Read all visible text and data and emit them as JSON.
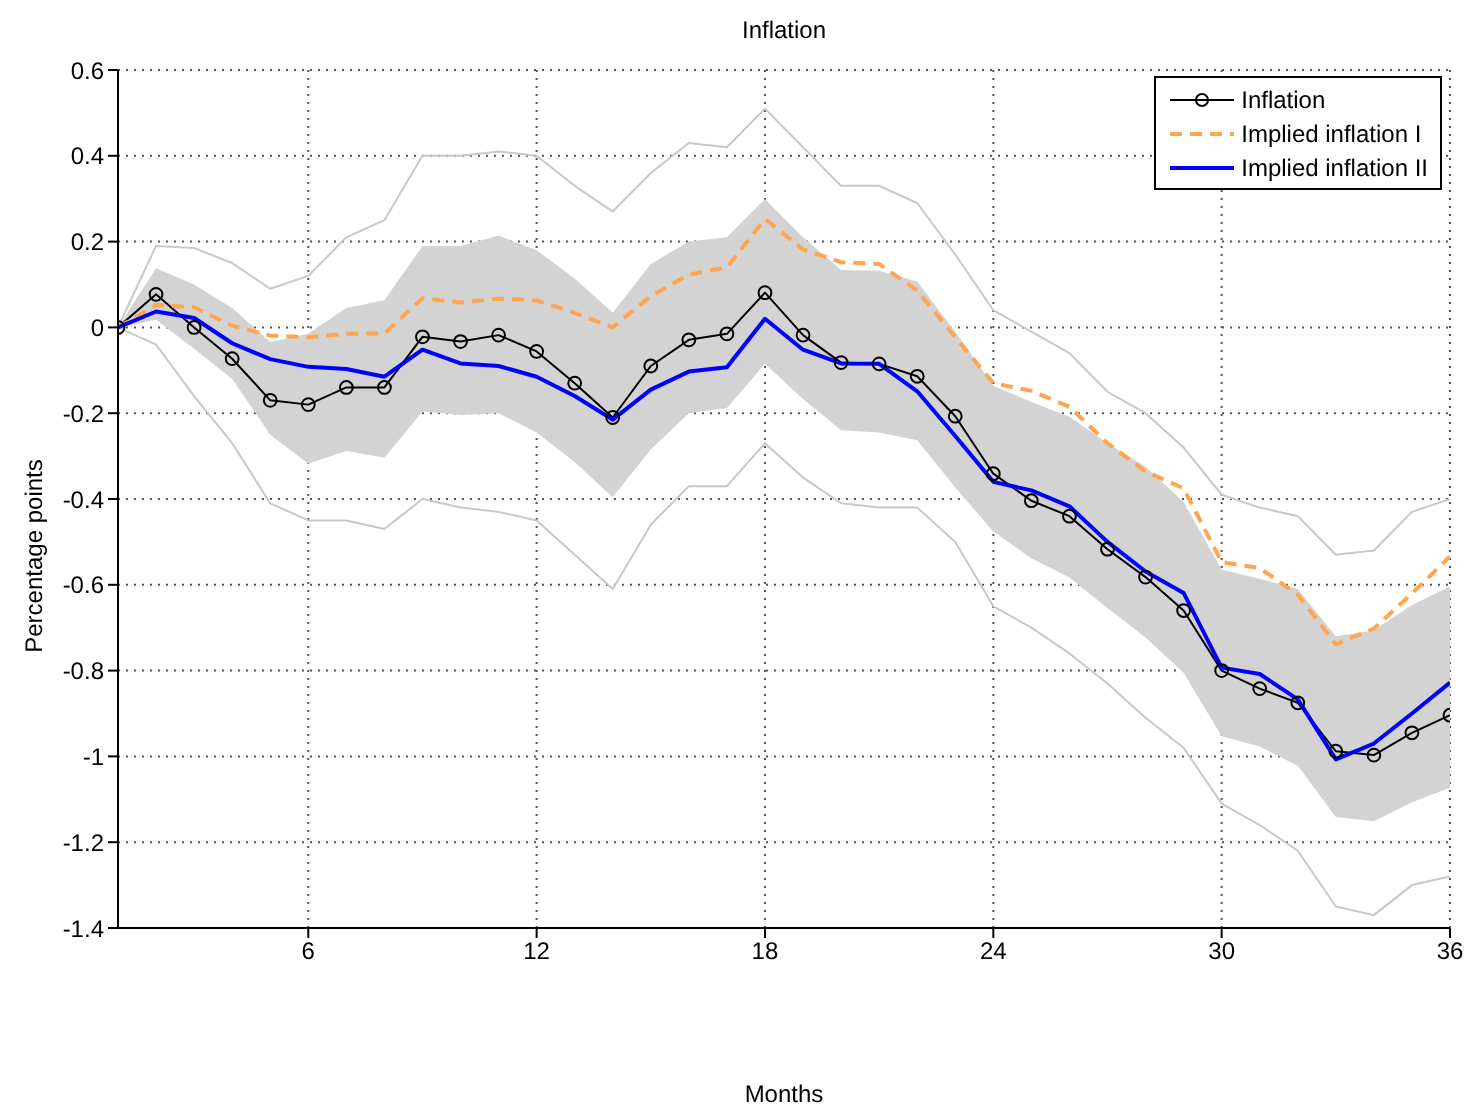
{
  "chart_data": {
    "type": "line",
    "title": "Inflation",
    "xlabel": "Months",
    "ylabel": "Percentage points",
    "x": [
      1,
      2,
      3,
      4,
      5,
      6,
      7,
      8,
      9,
      10,
      11,
      12,
      13,
      14,
      15,
      16,
      17,
      18,
      19,
      20,
      21,
      22,
      23,
      24,
      25,
      26,
      27,
      28,
      29,
      30,
      31,
      32,
      33,
      34,
      35,
      36
    ],
    "xlim": [
      1,
      36
    ],
    "xticks": [
      6,
      12,
      18,
      24,
      30,
      36
    ],
    "ylim": [
      -1.4,
      0.6
    ],
    "yticks": [
      -1.4,
      -1.2,
      -1,
      -0.8,
      -0.6,
      -0.4,
      -0.2,
      0,
      0.2,
      0.4,
      0.6
    ],
    "grid": true,
    "legend": "top right",
    "series": [
      {
        "color": "#c8c8c8",
        "values": [
          0,
          0.19,
          0.185,
          0.15,
          0.09,
          0.12,
          0.21,
          0.25,
          0.4,
          0.4,
          0.41,
          0.4,
          0.33,
          0.27,
          0.36,
          0.43,
          0.42,
          0.51,
          0.42,
          0.33,
          0.33,
          0.29,
          0.17,
          0.04,
          -0.01,
          -0.06,
          -0.15,
          -0.2,
          -0.28,
          -0.39,
          -0.42,
          -0.44,
          -0.53,
          -0.52,
          -0.43,
          -0.4
        ]
      },
      {
        "color": "#c8c8c8",
        "values": [
          0,
          -0.04,
          -0.16,
          -0.27,
          -0.41,
          -0.45,
          -0.45,
          -0.47,
          -0.4,
          -0.42,
          -0.43,
          -0.45,
          -0.53,
          -0.61,
          -0.46,
          -0.37,
          -0.37,
          -0.27,
          -0.35,
          -0.41,
          -0.42,
          -0.42,
          -0.5,
          -0.65,
          -0.7,
          -0.76,
          -0.83,
          -0.91,
          -0.98,
          -1.11,
          -1.16,
          -1.22,
          -1.35,
          -1.37,
          -1.3,
          -1.28
        ]
      },
      {
        "name": "Inflation",
        "color": "#000000",
        "marker": "circle",
        "values": [
          0,
          0.077,
          0,
          -0.073,
          -0.17,
          -0.18,
          -0.14,
          -0.14,
          -0.022,
          -0.033,
          -0.018,
          -0.056,
          -0.13,
          -0.21,
          -0.09,
          -0.029,
          -0.015,
          0.081,
          -0.018,
          -0.082,
          -0.085,
          -0.114,
          -0.207,
          -0.341,
          -0.404,
          -0.44,
          -0.517,
          -0.582,
          -0.66,
          -0.8,
          -0.842,
          -0.875,
          -0.988,
          -0.997,
          -0.945,
          -0.904
        ],
        "lower": [
          0,
          0.018,
          -0.05,
          -0.12,
          -0.25,
          -0.318,
          -0.288,
          -0.304,
          -0.196,
          -0.204,
          -0.2,
          -0.245,
          -0.314,
          -0.396,
          -0.284,
          -0.2,
          -0.188,
          -0.085,
          -0.167,
          -0.24,
          -0.245,
          -0.263,
          -0.373,
          -0.476,
          -0.538,
          -0.583,
          -0.654,
          -0.723,
          -0.805,
          -0.953,
          -0.977,
          -1.022,
          -1.141,
          -1.151,
          -1.107,
          -1.073
        ],
        "upper": [
          0,
          0.138,
          0.1,
          0.045,
          -0.034,
          -0.015,
          0.045,
          0.063,
          0.19,
          0.19,
          0.214,
          0.18,
          0.114,
          0.034,
          0.148,
          0.2,
          0.21,
          0.299,
          0.21,
          0.134,
          0.132,
          0.107,
          -0.01,
          -0.136,
          -0.174,
          -0.208,
          -0.27,
          -0.325,
          -0.407,
          -0.565,
          -0.586,
          -0.61,
          -0.72,
          -0.706,
          -0.647,
          -0.604
        ]
      },
      {
        "name": "Implied inflation I",
        "color": "#ffa54f",
        "line_style": "dashed",
        "values": [
          0,
          0.052,
          0.047,
          0.004,
          -0.019,
          -0.023,
          -0.015,
          -0.014,
          0.068,
          0.058,
          0.067,
          0.063,
          0.034,
          0,
          0.073,
          0.123,
          0.14,
          0.253,
          0.182,
          0.152,
          0.148,
          0.086,
          -0.023,
          -0.13,
          -0.148,
          -0.185,
          -0.27,
          -0.336,
          -0.375,
          -0.547,
          -0.561,
          -0.623,
          -0.739,
          -0.702,
          -0.62,
          -0.534
        ]
      },
      {
        "name": "Implied inflation II",
        "color": "#0000ff",
        "values": [
          0,
          0.037,
          0.022,
          -0.037,
          -0.074,
          -0.092,
          -0.097,
          -0.115,
          -0.052,
          -0.084,
          -0.09,
          -0.115,
          -0.16,
          -0.215,
          -0.145,
          -0.103,
          -0.093,
          0.02,
          -0.052,
          -0.084,
          -0.085,
          -0.149,
          -0.253,
          -0.36,
          -0.38,
          -0.417,
          -0.5,
          -0.569,
          -0.619,
          -0.793,
          -0.808,
          -0.867,
          -1.007,
          -0.97,
          -0.9,
          -0.828
        ]
      }
    ]
  }
}
